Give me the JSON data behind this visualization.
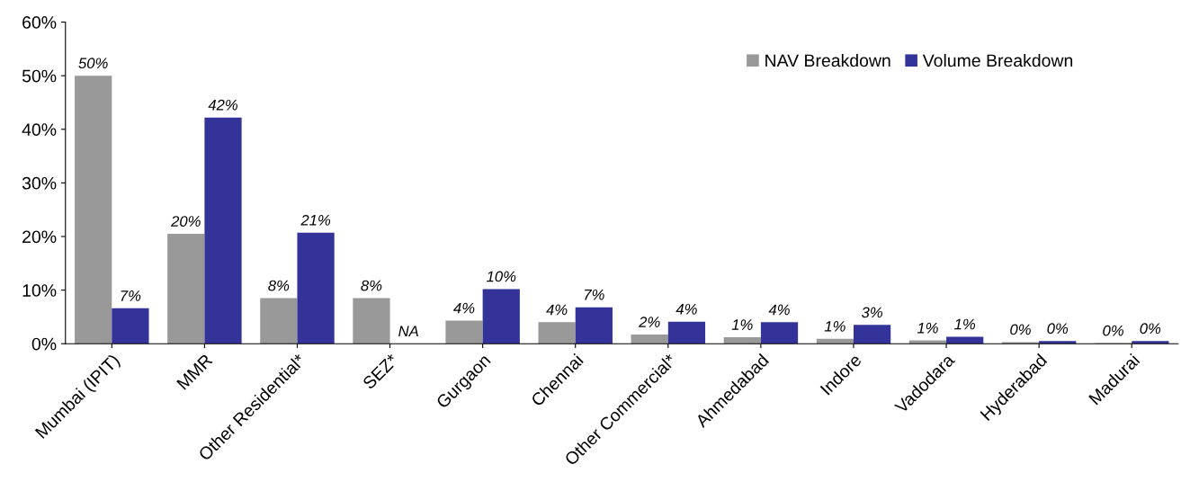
{
  "chart_data": {
    "type": "bar",
    "categories": [
      "Mumbai (IPIT)",
      "MMR",
      "Other Residential*",
      "SEZ*",
      "Gurgaon",
      "Chennai",
      "Other Commercial*",
      "Ahmedabad",
      "Indore",
      "Vadodara",
      "Hyderabad",
      "Madurai"
    ],
    "series": [
      {
        "name": "NAV Breakdown",
        "color": "#999999",
        "values": [
          50,
          20.5,
          8.5,
          8.5,
          4.3,
          4.0,
          1.7,
          1.2,
          0.9,
          0.6,
          0.3,
          0.1
        ],
        "value_labels": [
          "50%",
          "20%",
          "8%",
          "8%",
          "4%",
          "4%",
          "2%",
          "1%",
          "1%",
          "1%",
          "0%",
          "0%"
        ]
      },
      {
        "name": "Volume Breakdown",
        "color": "#333399",
        "values": [
          6.6,
          42.2,
          20.7,
          null,
          10.2,
          6.8,
          4.1,
          4.0,
          3.5,
          1.3,
          0.5,
          0.5
        ],
        "value_labels": [
          "7%",
          "42%",
          "21%",
          "NA",
          "10%",
          "7%",
          "4%",
          "4%",
          "3%",
          "1%",
          "0%",
          "0%"
        ]
      }
    ],
    "ylim": [
      0,
      60
    ],
    "yticks": [
      {
        "value": 0,
        "label": "0%"
      },
      {
        "value": 10,
        "label": "10%"
      },
      {
        "value": 20,
        "label": "20%"
      },
      {
        "value": 30,
        "label": "30%"
      },
      {
        "value": 40,
        "label": "40%"
      },
      {
        "value": 50,
        "label": "50%"
      },
      {
        "value": 60,
        "label": "60%"
      }
    ],
    "grid": false,
    "legend": "top right"
  }
}
